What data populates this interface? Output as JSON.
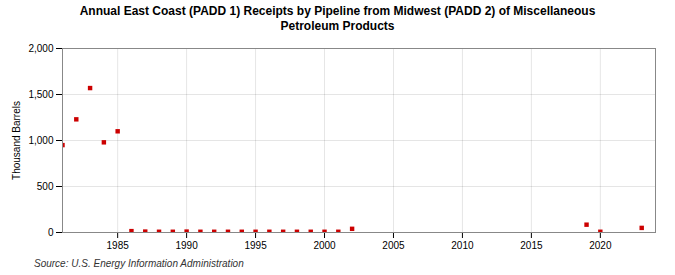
{
  "chart_data": {
    "type": "scatter",
    "title": "Annual East Coast (PADD 1) Receipts by Pipeline from Midwest (PADD 2) of Miscellaneous\nPetroleum Products",
    "ylabel": "Thousand Barrels",
    "source": "Source: U.S. Energy Information Administration",
    "x": [
      1981,
      1982,
      1983,
      1984,
      1985,
      1986,
      1987,
      1988,
      1989,
      1990,
      1991,
      1992,
      1993,
      1994,
      1995,
      1996,
      1997,
      1998,
      1999,
      2000,
      2001,
      2002,
      2019,
      2020,
      2023
    ],
    "values": [
      950,
      1230,
      1570,
      980,
      1100,
      15,
      10,
      8,
      8,
      10,
      8,
      8,
      8,
      8,
      8,
      8,
      8,
      8,
      8,
      8,
      8,
      40,
      85,
      8,
      50
    ],
    "color": "#cc0000",
    "marker": "square",
    "grid": true,
    "xlim": [
      1981,
      2024
    ],
    "xticks": [
      1985,
      1990,
      1995,
      2000,
      2005,
      2010,
      2015,
      2020
    ],
    "ylim": [
      0,
      2000
    ],
    "yticks": [
      0,
      500,
      {
        "value": 1000,
        "label": "1,000"
      },
      {
        "value": 1500,
        "label": "1,500"
      },
      {
        "value": 2000,
        "label": "2,000"
      }
    ]
  }
}
